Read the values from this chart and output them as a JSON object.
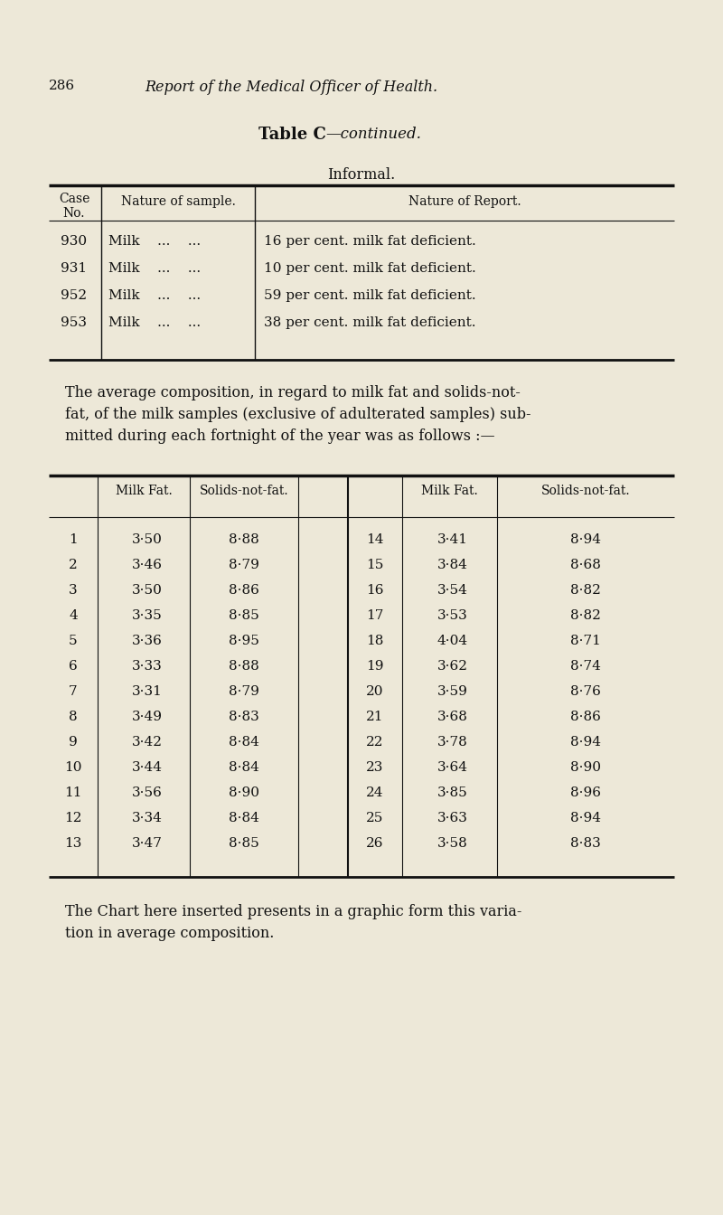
{
  "bg_color": "#ede8d8",
  "page_number": "286",
  "header_italic": "Report of the Medical Officer of Health.",
  "table_c_bold": "Table C",
  "table_c_cont": "—continued.",
  "informal_title": "Informal.",
  "informal_rows": [
    [
      "930",
      "Milk    ...    ...",
      "16 per cent. milk fat deficient."
    ],
    [
      "931",
      "Milk    ...    ...",
      "10 per cent. milk fat deficient."
    ],
    [
      "952",
      "Milk    ...    ...",
      "59 per cent. milk fat deficient."
    ],
    [
      "953",
      "Milk    ...    ...",
      "38 per cent. milk fat deficient."
    ]
  ],
  "para_lines": [
    "The average composition, in regard to milk fat and solids-not-",
    "fat, of the milk samples (exclusive of adulterated samples) sub-",
    "mitted during each fortnight of the year was as follows :—"
  ],
  "rows_left": [
    [
      "1",
      "3·50",
      "8·88"
    ],
    [
      "2",
      "3·46",
      "8·79"
    ],
    [
      "3",
      "3·50",
      "8·86"
    ],
    [
      "4",
      "3·35",
      "8·85"
    ],
    [
      "5",
      "3·36",
      "8·95"
    ],
    [
      "6",
      "3·33",
      "8·88"
    ],
    [
      "7",
      "3·31",
      "8·79"
    ],
    [
      "8",
      "3·49",
      "8·83"
    ],
    [
      "9",
      "3·42",
      "8·84"
    ],
    [
      "10",
      "3·44",
      "8·84"
    ],
    [
      "11",
      "3·56",
      "8·90"
    ],
    [
      "12",
      "3·34",
      "8·84"
    ],
    [
      "13",
      "3·47",
      "8·85"
    ]
  ],
  "rows_right": [
    [
      "14",
      "3·41",
      "8·94"
    ],
    [
      "15",
      "3·84",
      "8·68"
    ],
    [
      "16",
      "3·54",
      "8·82"
    ],
    [
      "17",
      "3·53",
      "8·82"
    ],
    [
      "18",
      "4·04",
      "8·71"
    ],
    [
      "19",
      "3·62",
      "8·74"
    ],
    [
      "20",
      "3·59",
      "8·76"
    ],
    [
      "21",
      "3·68",
      "8·86"
    ],
    [
      "22",
      "3·78",
      "8·94"
    ],
    [
      "23",
      "3·64",
      "8·90"
    ],
    [
      "24",
      "3·85",
      "8·96"
    ],
    [
      "25",
      "3·63",
      "8·94"
    ],
    [
      "26",
      "3·58",
      "8·83"
    ]
  ],
  "footer_lines": [
    "The Chart here inserted presents in a graphic form this varia-",
    "tion in average composition."
  ]
}
